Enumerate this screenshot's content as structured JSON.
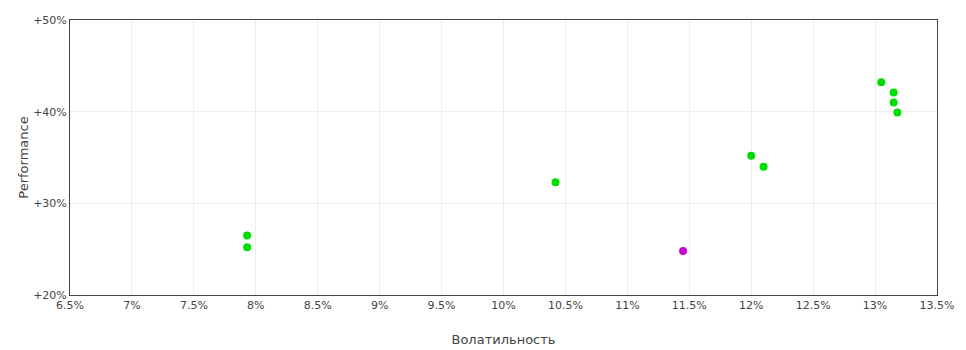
{
  "chart_data": {
    "type": "scatter",
    "xlabel": "Волатильность",
    "ylabel": "Performance",
    "x": [
      0.0793,
      0.0793,
      0.1042,
      0.1145,
      0.12,
      0.121,
      0.1305,
      0.1315,
      0.1315,
      0.1318
    ],
    "values": [
      0.265,
      0.252,
      0.323,
      0.248,
      0.352,
      0.34,
      0.432,
      0.421,
      0.41,
      0.399
    ],
    "colors": [
      "#00dd00",
      "#00dd00",
      "#00dd00",
      "#cc00cc",
      "#00dd00",
      "#00dd00",
      "#00dd00",
      "#00dd00",
      "#00dd00",
      "#00dd00"
    ],
    "xlim": [
      0.065,
      0.135
    ],
    "ylim": [
      0.2,
      0.5
    ],
    "xticks": [
      {
        "value": 0.065,
        "label": "6.5%"
      },
      {
        "value": 0.07,
        "label": "7%"
      },
      {
        "value": 0.075,
        "label": "7.5%"
      },
      {
        "value": 0.08,
        "label": "8%"
      },
      {
        "value": 0.085,
        "label": "8.5%"
      },
      {
        "value": 0.09,
        "label": "9%"
      },
      {
        "value": 0.095,
        "label": "9.5%"
      },
      {
        "value": 0.1,
        "label": "10%"
      },
      {
        "value": 0.105,
        "label": "10.5%"
      },
      {
        "value": 0.11,
        "label": "11%"
      },
      {
        "value": 0.115,
        "label": "11.5%"
      },
      {
        "value": 0.12,
        "label": "12%"
      },
      {
        "value": 0.125,
        "label": "12.5%"
      },
      {
        "value": 0.13,
        "label": "13%"
      },
      {
        "value": 0.135,
        "label": "13.5%"
      }
    ],
    "yticks": [
      {
        "value": 0.2,
        "label": "+20%"
      },
      {
        "value": 0.3,
        "label": "+30%"
      },
      {
        "value": 0.4,
        "label": "+40%"
      },
      {
        "value": 0.5,
        "label": "+50%"
      }
    ],
    "grid": true
  }
}
